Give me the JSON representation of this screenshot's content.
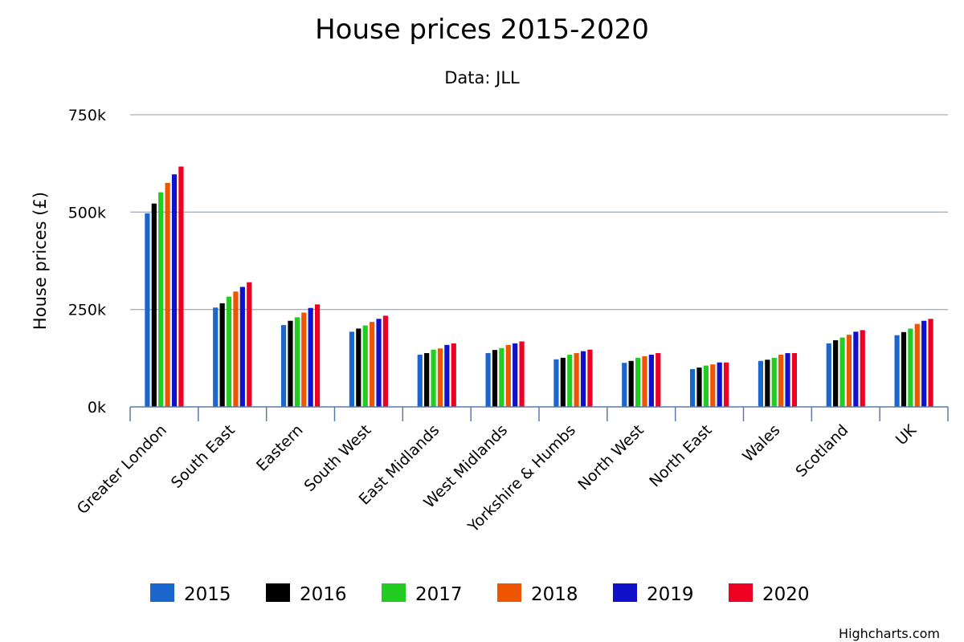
{
  "chart_data": {
    "type": "bar",
    "title": "House prices 2015-2020",
    "subtitle": "Data: JLL",
    "xlabel": "",
    "ylabel": "House prices (£)",
    "ylim": [
      0,
      750000
    ],
    "yticks": [
      0,
      250000,
      500000,
      750000
    ],
    "ytick_labels": [
      "0k",
      "250k",
      "500k",
      "750k"
    ],
    "grid": true,
    "legend_position": "bottom",
    "credits": "Highcharts.com",
    "categories": [
      "Greater London",
      "South East",
      "Eastern",
      "South West",
      "East Midlands",
      "West Midlands",
      "Yorkshire & Humbs",
      "North West",
      "North East",
      "Wales",
      "Scotland",
      "UK"
    ],
    "series": [
      {
        "name": "2015",
        "color": "#1a66cc",
        "values": [
          497000,
          255000,
          210000,
          193000,
          134000,
          138000,
          122000,
          113000,
          97000,
          118000,
          163000,
          184000
        ]
      },
      {
        "name": "2016",
        "color": "#000000",
        "values": [
          522000,
          266000,
          221000,
          201000,
          138000,
          146000,
          126000,
          118000,
          101000,
          121000,
          171000,
          192000
        ]
      },
      {
        "name": "2017",
        "color": "#22cc22",
        "values": [
          551000,
          283000,
          230000,
          209000,
          147000,
          151000,
          134000,
          126000,
          106000,
          126000,
          178000,
          201000
        ]
      },
      {
        "name": "2018",
        "color": "#ee5500",
        "values": [
          575000,
          296000,
          242000,
          218000,
          150000,
          159000,
          138000,
          130000,
          109000,
          134000,
          185000,
          213000
        ]
      },
      {
        "name": "2019",
        "color": "#1111cc",
        "values": [
          597000,
          308000,
          254000,
          226000,
          159000,
          163000,
          143000,
          134000,
          114000,
          138000,
          193000,
          221000
        ]
      },
      {
        "name": "2020",
        "color": "#ee0022",
        "values": [
          617000,
          320000,
          263000,
          234000,
          163000,
          168000,
          147000,
          138000,
          114000,
          138000,
          197000,
          226000
        ]
      }
    ]
  }
}
